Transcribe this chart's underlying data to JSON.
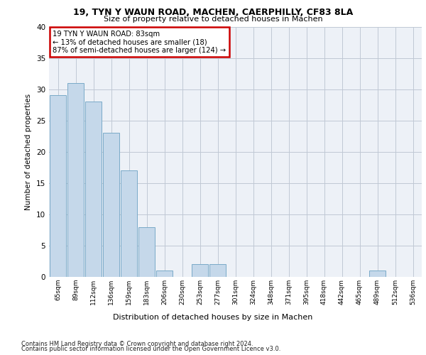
{
  "title1": "19, TYN Y WAUN ROAD, MACHEN, CAERPHILLY, CF83 8LA",
  "title2": "Size of property relative to detached houses in Machen",
  "xlabel": "Distribution of detached houses by size in Machen",
  "ylabel": "Number of detached properties",
  "categories": [
    "65sqm",
    "89sqm",
    "112sqm",
    "136sqm",
    "159sqm",
    "183sqm",
    "206sqm",
    "230sqm",
    "253sqm",
    "277sqm",
    "301sqm",
    "324sqm",
    "348sqm",
    "371sqm",
    "395sqm",
    "418sqm",
    "442sqm",
    "465sqm",
    "489sqm",
    "512sqm",
    "536sqm"
  ],
  "values": [
    29,
    31,
    28,
    23,
    17,
    8,
    1,
    0,
    2,
    2,
    0,
    0,
    0,
    0,
    0,
    0,
    0,
    0,
    1,
    0,
    0
  ],
  "bar_color": "#c5d8ea",
  "bar_edge_color": "#7aaac8",
  "annotation_lines": [
    "19 TYN Y WAUN ROAD: 83sqm",
    "← 13% of detached houses are smaller (18)",
    "87% of semi-detached houses are larger (124) →"
  ],
  "annotation_box_color": "#ffffff",
  "annotation_box_edge": "#cc0000",
  "ylim": [
    0,
    40
  ],
  "yticks": [
    0,
    5,
    10,
    15,
    20,
    25,
    30,
    35,
    40
  ],
  "footer1": "Contains HM Land Registry data © Crown copyright and database right 2024.",
  "footer2": "Contains public sector information licensed under the Open Government Licence v3.0.",
  "bg_color": "#edf1f7"
}
